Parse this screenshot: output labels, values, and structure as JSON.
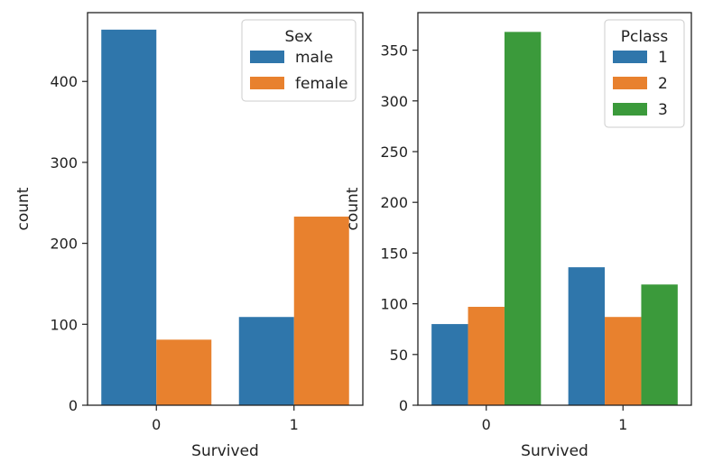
{
  "chart_data": [
    {
      "type": "bar",
      "xlabel": "Survived",
      "ylabel": "count",
      "categories": [
        "0",
        "1"
      ],
      "ylim": [
        0,
        485
      ],
      "yticks": [
        0,
        100,
        200,
        300,
        400
      ],
      "legend": {
        "title": "Sex",
        "placement": "top-right"
      },
      "series": [
        {
          "name": "male",
          "color": "#2f76ab",
          "values": [
            464,
            109
          ]
        },
        {
          "name": "female",
          "color": "#e8812e",
          "values": [
            81,
            233
          ]
        }
      ]
    },
    {
      "type": "bar",
      "xlabel": "Survived",
      "ylabel": "count",
      "categories": [
        "0",
        "1"
      ],
      "ylim": [
        0,
        387
      ],
      "yticks": [
        0,
        50,
        100,
        150,
        200,
        250,
        300,
        350
      ],
      "legend": {
        "title": "Pclass",
        "placement": "top-right"
      },
      "series": [
        {
          "name": "1",
          "color": "#2f76ab",
          "values": [
            80,
            136
          ]
        },
        {
          "name": "2",
          "color": "#e8812e",
          "values": [
            97,
            87
          ]
        },
        {
          "name": "3",
          "color": "#3b9a3b",
          "values": [
            368,
            119
          ]
        }
      ]
    }
  ]
}
